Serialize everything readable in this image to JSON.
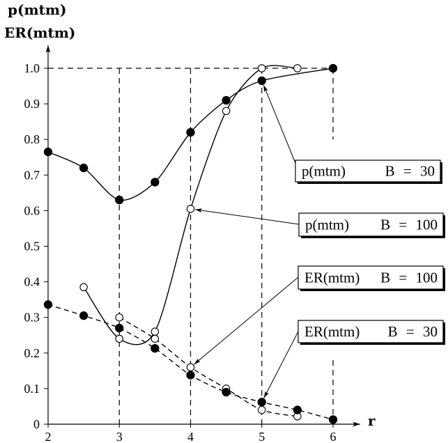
{
  "chart_data": {
    "type": "line",
    "xlabel": "r",
    "ylabel": [
      "p(mtm)",
      "ER(mtm)"
    ],
    "xlim": [
      2,
      6
    ],
    "ylim": [
      0,
      1.0
    ],
    "xticks": [
      2,
      3,
      4,
      5,
      6
    ],
    "xtick_labels": [
      "2",
      "3",
      "4",
      "5",
      "6"
    ],
    "yticks": [
      0,
      0.1,
      0.2,
      0.3,
      0.4,
      0.5,
      0.6,
      0.7,
      0.8,
      0.9,
      1.0
    ],
    "ytick_labels": [
      "0",
      "0.1",
      "0.2",
      "0.3",
      "0.4",
      "0.5",
      "0.6",
      "0.7",
      "0.8",
      "0.9",
      "1.0"
    ],
    "grid": false,
    "reference_lines": {
      "x": [
        3,
        4,
        5,
        6
      ],
      "y": [
        1.0
      ]
    },
    "series": [
      {
        "quantity": "p(mtm)",
        "param": "B = 30",
        "marker_filled": true,
        "dashed": false,
        "x": [
          2,
          2.5,
          3,
          3.5,
          4,
          4.5,
          5,
          6
        ],
        "y": [
          0.765,
          0.72,
          0.63,
          0.68,
          0.82,
          0.91,
          0.965,
          1.0
        ]
      },
      {
        "quantity": "p(mtm)",
        "param": "B = 100",
        "marker_filled": false,
        "dashed": false,
        "x": [
          2.5,
          3,
          3.5,
          4,
          4.5,
          5,
          5.5
        ],
        "y": [
          0.385,
          0.24,
          0.26,
          0.605,
          0.88,
          1.0,
          1.0
        ]
      },
      {
        "quantity": "ER(mtm)",
        "param": "B = 100",
        "marker_filled": false,
        "dashed": true,
        "x": [
          3,
          3.5,
          4,
          4.5,
          5,
          5.5
        ],
        "y": [
          0.3,
          0.24,
          0.16,
          0.1,
          0.04,
          0.022
        ]
      },
      {
        "quantity": "ER(mtm)",
        "param": "B = 30",
        "marker_filled": true,
        "dashed": true,
        "x": [
          2,
          2.5,
          3,
          3.5,
          4,
          4.5,
          5,
          5.5,
          6
        ],
        "y": [
          0.336,
          0.305,
          0.27,
          0.213,
          0.138,
          0.09,
          0.062,
          0.04,
          0.013
        ]
      }
    ]
  }
}
